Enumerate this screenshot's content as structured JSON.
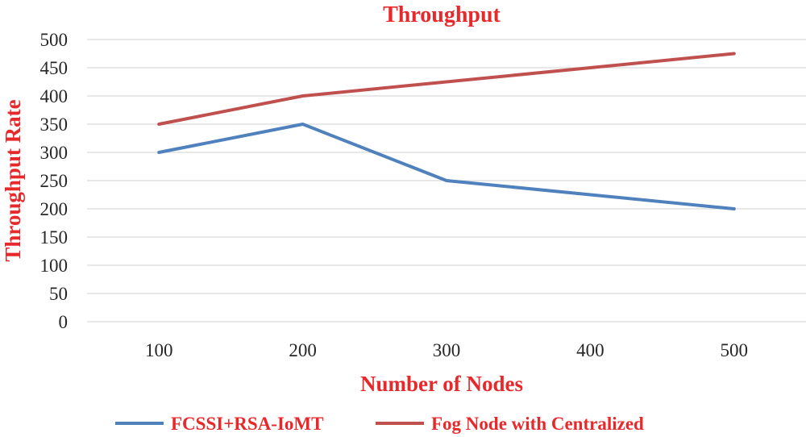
{
  "chart_data": {
    "type": "line",
    "title": "Throughput",
    "xlabel": "Number of Nodes",
    "ylabel": "Throughput Rate",
    "categories": [
      "100",
      "200",
      "300",
      "400",
      "500"
    ],
    "ylim": [
      0,
      500
    ],
    "yticks": [
      "0",
      "50",
      "100",
      "150",
      "200",
      "250",
      "300",
      "350",
      "400",
      "450",
      "500"
    ],
    "grid": true,
    "legend_position": "bottom",
    "series": [
      {
        "name": "FCSSI+RSA-IoMT",
        "color": "#4f81bd",
        "values": [
          300,
          350,
          250,
          225,
          200
        ]
      },
      {
        "name": "Fog Node with Centralized",
        "color": "#c0504d",
        "values": [
          350,
          400,
          425,
          450,
          475
        ]
      }
    ]
  }
}
